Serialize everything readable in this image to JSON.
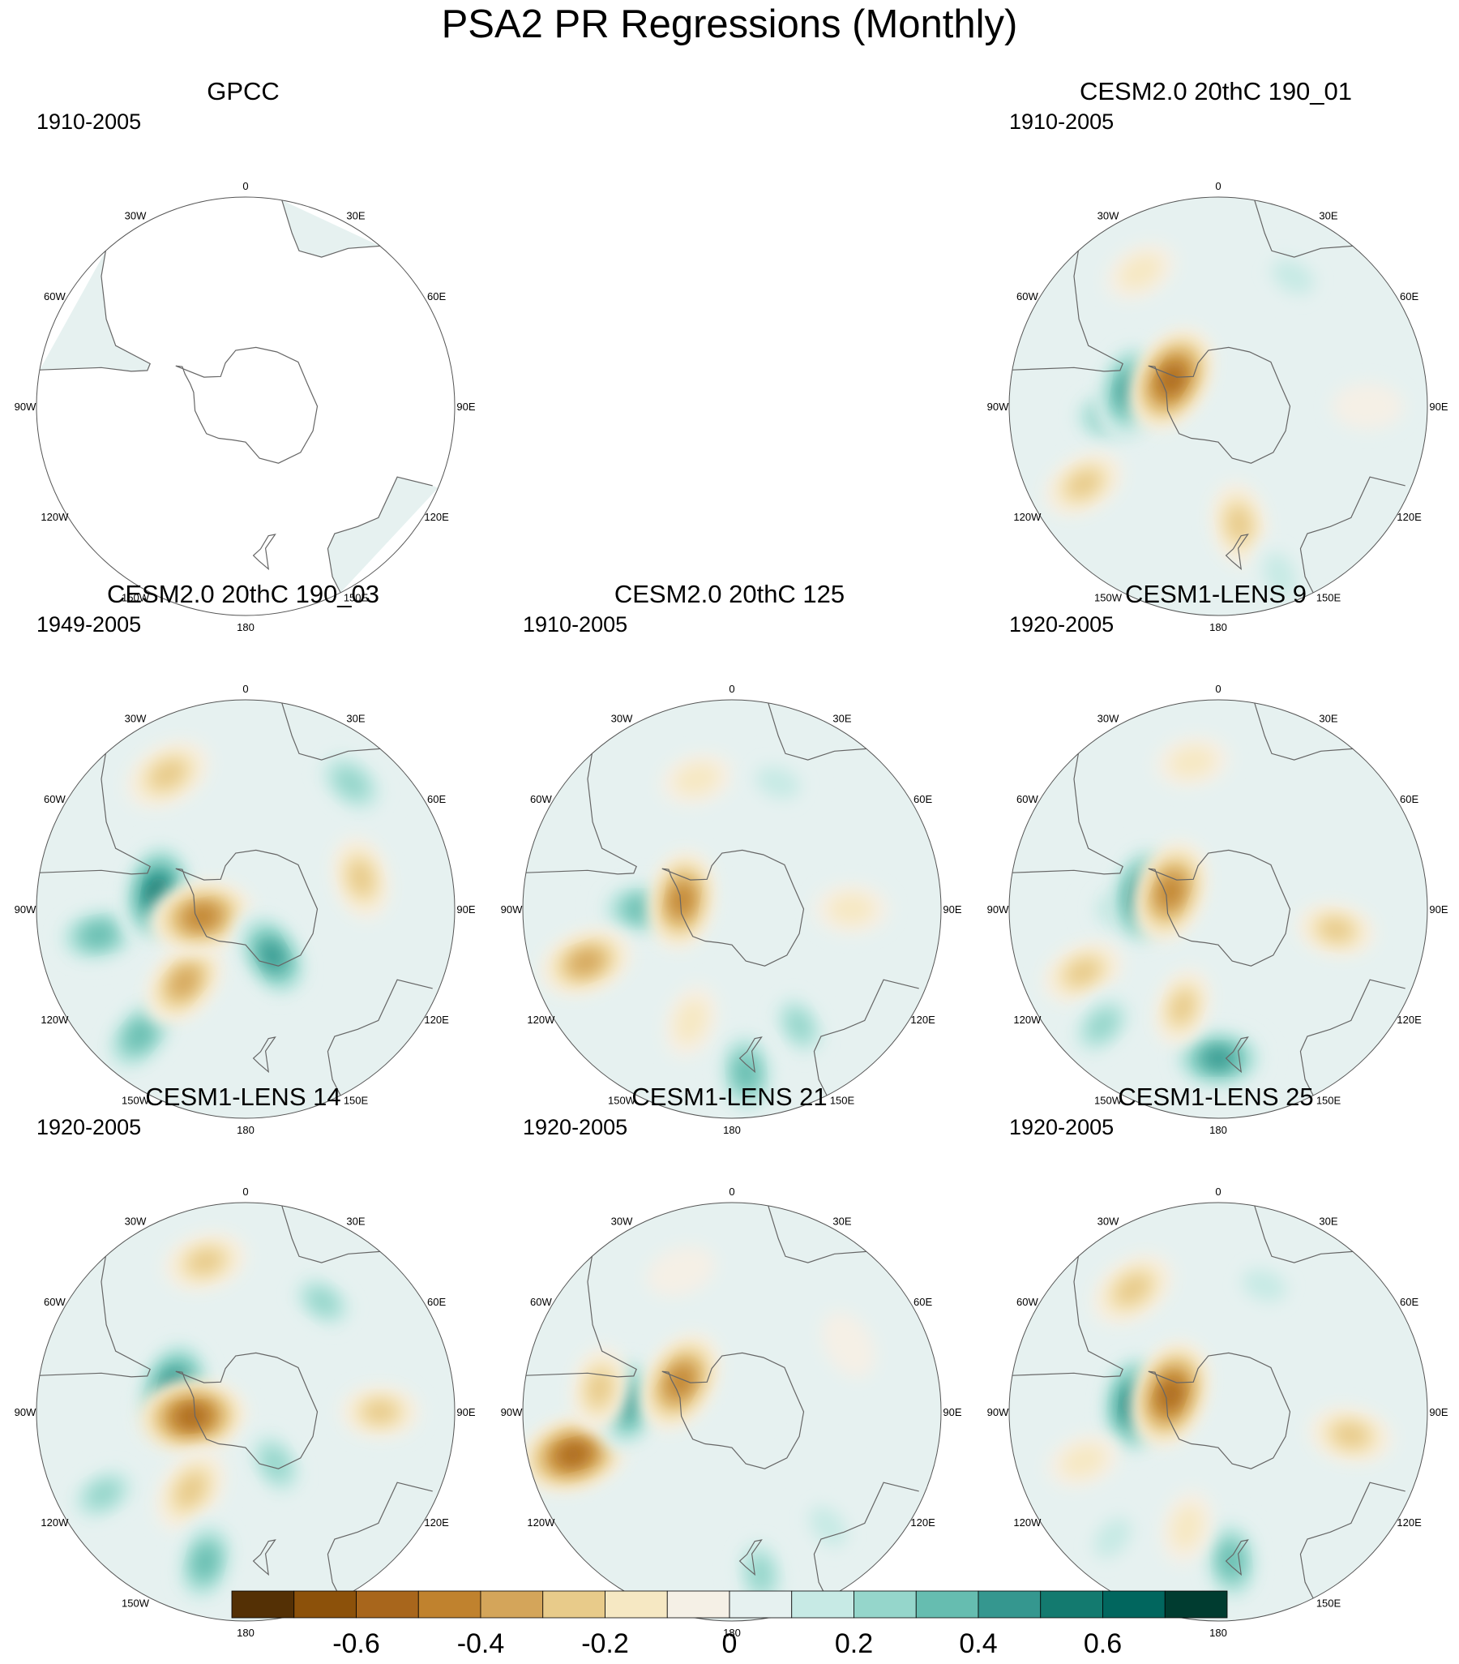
{
  "figure": {
    "title": "PSA2 PR Regressions (Monthly)"
  },
  "chart_data": {
    "type": "heatmap",
    "projection": "south-polar-stereographic",
    "variable": "PR regression on PSA2 (monthly)",
    "longitude_labels": [
      "0",
      "30E",
      "60E",
      "90E",
      "120E",
      "150E",
      "180",
      "150W",
      "120W",
      "90W",
      "60W",
      "30W"
    ],
    "colorbar": {
      "levels": [
        -0.7,
        -0.6,
        -0.5,
        -0.4,
        -0.3,
        -0.2,
        -0.1,
        0,
        0.1,
        0.2,
        0.3,
        0.4,
        0.5,
        0.6,
        0.7
      ],
      "tick_labels": [
        "-0.6",
        "-0.4",
        "-0.2",
        "0",
        "0.2",
        "0.4",
        "0.6"
      ],
      "tick_values": [
        -0.6,
        -0.4,
        -0.2,
        0,
        0.2,
        0.4,
        0.6
      ],
      "colors": [
        "#543005",
        "#8c510a",
        "#a8661c",
        "#c0822e",
        "#d4a55a",
        "#e8cb8a",
        "#f6e8c3",
        "#f5f0e6",
        "#e6f1f0",
        "#c7eae5",
        "#95d6cb",
        "#66bdb0",
        "#35978f",
        "#137a6f",
        "#01665e",
        "#003c30"
      ]
    },
    "panels": [
      {
        "id": "gpcc",
        "title": "GPCC",
        "period": "1910-2005",
        "coverage": "land-only",
        "features": []
      },
      {
        "id": "cesm2-190-01",
        "title": "CESM2.0 20thC 190_01",
        "period": "1910-2005",
        "coverage": "global",
        "features": [
          {
            "lon": -95,
            "lat": -55,
            "value": 0.4
          },
          {
            "lon": -80,
            "lat": -60,
            "value": 0.5
          },
          {
            "lon": -60,
            "lat": -72,
            "value": -0.55
          },
          {
            "lon": -120,
            "lat": -38,
            "value": -0.3
          },
          {
            "lon": 170,
            "lat": -50,
            "value": -0.3
          },
          {
            "lon": 160,
            "lat": -30,
            "value": 0.2
          },
          {
            "lon": -30,
            "lat": -38,
            "value": -0.2
          },
          {
            "lon": 30,
            "lat": -40,
            "value": 0.2
          },
          {
            "lon": 90,
            "lat": -40,
            "value": -0.15
          }
        ]
      },
      {
        "id": "cesm2-190-03",
        "title": "CESM2.0 20thC 190_03",
        "period": "1949-2005",
        "coverage": "global",
        "features": [
          {
            "lon": -100,
            "lat": -40,
            "value": 0.4
          },
          {
            "lon": -140,
            "lat": -35,
            "value": 0.4
          },
          {
            "lon": -80,
            "lat": -60,
            "value": 0.55
          },
          {
            "lon": -140,
            "lat": -58,
            "value": -0.4
          },
          {
            "lon": -100,
            "lat": -75,
            "value": -0.5
          },
          {
            "lon": 150,
            "lat": -72,
            "value": 0.45
          },
          {
            "lon": 40,
            "lat": -35,
            "value": 0.35
          },
          {
            "lon": 75,
            "lat": -50,
            "value": -0.3
          },
          {
            "lon": -30,
            "lat": -38,
            "value": -0.35
          }
        ]
      },
      {
        "id": "cesm2-125",
        "title": "CESM2.0 20thC 125",
        "period": "1910-2005",
        "coverage": "global",
        "features": [
          {
            "lon": -90,
            "lat": -60,
            "value": 0.4
          },
          {
            "lon": -110,
            "lat": -38,
            "value": -0.4
          },
          {
            "lon": -80,
            "lat": -73,
            "value": -0.45
          },
          {
            "lon": 175,
            "lat": -35,
            "value": 0.4
          },
          {
            "lon": 150,
            "lat": -45,
            "value": 0.25
          },
          {
            "lon": -160,
            "lat": -50,
            "value": -0.2
          },
          {
            "lon": -15,
            "lat": -45,
            "value": -0.2
          },
          {
            "lon": 20,
            "lat": -45,
            "value": 0.2
          },
          {
            "lon": 90,
            "lat": -50,
            "value": -0.2
          }
        ]
      },
      {
        "id": "lens-9",
        "title": "CESM1-LENS 9",
        "period": "1920-2005",
        "coverage": "global",
        "features": [
          {
            "lon": -90,
            "lat": -60,
            "value": 0.35
          },
          {
            "lon": -80,
            "lat": -65,
            "value": 0.55
          },
          {
            "lon": -70,
            "lat": -73,
            "value": -0.5
          },
          {
            "lon": -115,
            "lat": -40,
            "value": -0.3
          },
          {
            "lon": -135,
            "lat": -35,
            "value": 0.3
          },
          {
            "lon": 180,
            "lat": -40,
            "value": 0.45
          },
          {
            "lon": -160,
            "lat": -55,
            "value": -0.25
          },
          {
            "lon": 100,
            "lat": -50,
            "value": -0.25
          },
          {
            "lon": -10,
            "lat": -40,
            "value": -0.2
          }
        ]
      },
      {
        "id": "lens-14",
        "title": "CESM1-LENS 14",
        "period": "1920-2005",
        "coverage": "global",
        "features": [
          {
            "lon": -75,
            "lat": -65,
            "value": 0.6
          },
          {
            "lon": -95,
            "lat": -72,
            "value": -0.55
          },
          {
            "lon": -145,
            "lat": -58,
            "value": -0.35
          },
          {
            "lon": -165,
            "lat": -38,
            "value": 0.4
          },
          {
            "lon": -120,
            "lat": -35,
            "value": 0.3
          },
          {
            "lon": -15,
            "lat": -38,
            "value": -0.3
          },
          {
            "lon": 35,
            "lat": -45,
            "value": 0.25
          },
          {
            "lon": 90,
            "lat": -45,
            "value": -0.25
          },
          {
            "lon": 150,
            "lat": -70,
            "value": 0.3
          }
        ]
      },
      {
        "id": "lens-21",
        "title": "CESM1-LENS 21",
        "period": "1920-2005",
        "coverage": "global",
        "features": [
          {
            "lon": -105,
            "lat": -35,
            "value": -0.55
          },
          {
            "lon": -85,
            "lat": -55,
            "value": 0.45
          },
          {
            "lon": -60,
            "lat": -70,
            "value": -0.5
          },
          {
            "lon": -80,
            "lat": -45,
            "value": -0.3
          },
          {
            "lon": 170,
            "lat": -35,
            "value": 0.3
          },
          {
            "lon": 140,
            "lat": -40,
            "value": 0.2
          },
          {
            "lon": 60,
            "lat": -45,
            "value": -0.15
          },
          {
            "lon": -20,
            "lat": -40,
            "value": -0.15
          },
          {
            "lon": 120,
            "lat": -55,
            "value": 0.15
          }
        ]
      },
      {
        "id": "lens-25",
        "title": "CESM1-LENS 25",
        "period": "1920-2005",
        "coverage": "global",
        "features": [
          {
            "lon": -85,
            "lat": -62,
            "value": 0.55
          },
          {
            "lon": -70,
            "lat": -73,
            "value": -0.55
          },
          {
            "lon": -110,
            "lat": -42,
            "value": -0.2
          },
          {
            "lon": 175,
            "lat": -40,
            "value": 0.4
          },
          {
            "lon": -35,
            "lat": -40,
            "value": -0.35
          },
          {
            "lon": 100,
            "lat": -45,
            "value": -0.3
          },
          {
            "lon": 20,
            "lat": -45,
            "value": 0.2
          },
          {
            "lon": -165,
            "lat": -50,
            "value": -0.2
          },
          {
            "lon": -140,
            "lat": -35,
            "value": 0.2
          }
        ]
      }
    ]
  }
}
